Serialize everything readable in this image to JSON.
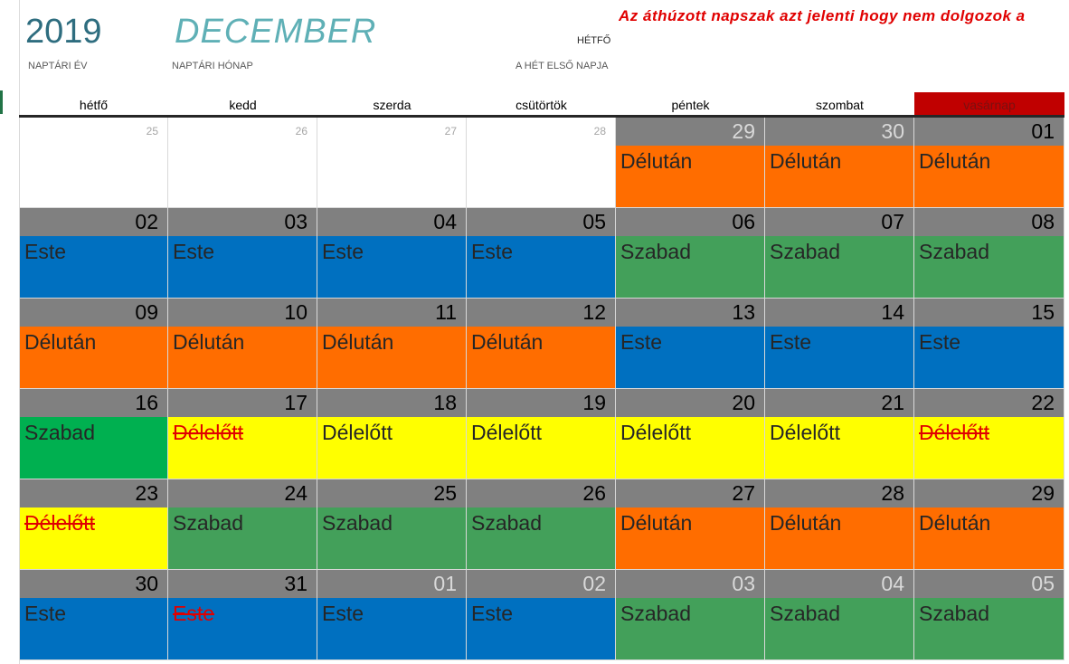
{
  "header": {
    "year": "2019",
    "year_label": "NAPTÁRI ÉV",
    "month": "DECEMBER",
    "month_label": "NAPTÁRI HÓNAP",
    "week_first_day_value": "HÉTFŐ",
    "week_first_day_label": "A HÉT ELSŐ NAPJA",
    "note": "Az áthúzott napszak azt jelenti hogy nem dolgozok a"
  },
  "weekdays": [
    "hétfő",
    "kedd",
    "szerda",
    "csütörtök",
    "péntek",
    "szombat",
    "vasárnap"
  ],
  "colors": {
    "Délután": "#ff6d00",
    "Este": "#0070c0",
    "Szabad": "#43a05a",
    "Szabad_highlight": "#00b050",
    "Délelőtt": "#ffff00",
    "sunday_header": "#c00000",
    "day_header": "#808080"
  },
  "weeks": [
    [
      {
        "day": "25",
        "empty": true
      },
      {
        "day": "26",
        "empty": true
      },
      {
        "day": "27",
        "empty": true
      },
      {
        "day": "28",
        "empty": true
      },
      {
        "day": "29",
        "other": true,
        "shift": "Délután"
      },
      {
        "day": "30",
        "other": true,
        "shift": "Délután"
      },
      {
        "day": "01",
        "shift": "Délután"
      }
    ],
    [
      {
        "day": "02",
        "shift": "Este"
      },
      {
        "day": "03",
        "shift": "Este"
      },
      {
        "day": "04",
        "shift": "Este"
      },
      {
        "day": "05",
        "shift": "Este"
      },
      {
        "day": "06",
        "shift": "Szabad"
      },
      {
        "day": "07",
        "shift": "Szabad"
      },
      {
        "day": "08",
        "shift": "Szabad"
      }
    ],
    [
      {
        "day": "09",
        "shift": "Délután"
      },
      {
        "day": "10",
        "shift": "Délután"
      },
      {
        "day": "11",
        "shift": "Délután"
      },
      {
        "day": "12",
        "shift": "Délután"
      },
      {
        "day": "13",
        "shift": "Este"
      },
      {
        "day": "14",
        "shift": "Este"
      },
      {
        "day": "15",
        "shift": "Este"
      }
    ],
    [
      {
        "day": "16",
        "shift": "Szabad",
        "highlight": true
      },
      {
        "day": "17",
        "shift": "Délelőtt",
        "struck": true
      },
      {
        "day": "18",
        "shift": "Délelőtt"
      },
      {
        "day": "19",
        "shift": "Délelőtt"
      },
      {
        "day": "20",
        "shift": "Délelőtt"
      },
      {
        "day": "21",
        "shift": "Délelőtt"
      },
      {
        "day": "22",
        "shift": "Délelőtt",
        "struck": true
      }
    ],
    [
      {
        "day": "23",
        "shift": "Délelőtt",
        "struck": true
      },
      {
        "day": "24",
        "shift": "Szabad"
      },
      {
        "day": "25",
        "shift": "Szabad"
      },
      {
        "day": "26",
        "shift": "Szabad"
      },
      {
        "day": "27",
        "shift": "Délután"
      },
      {
        "day": "28",
        "shift": "Délután"
      },
      {
        "day": "29",
        "shift": "Délután"
      }
    ],
    [
      {
        "day": "30",
        "shift": "Este"
      },
      {
        "day": "31",
        "shift": "Este",
        "struck": true
      },
      {
        "day": "01",
        "other": true,
        "shift": "Este"
      },
      {
        "day": "02",
        "other": true,
        "shift": "Este"
      },
      {
        "day": "03",
        "other": true,
        "shift": "Szabad"
      },
      {
        "day": "04",
        "other": true,
        "shift": "Szabad"
      },
      {
        "day": "05",
        "other": true,
        "shift": "Szabad"
      }
    ]
  ]
}
